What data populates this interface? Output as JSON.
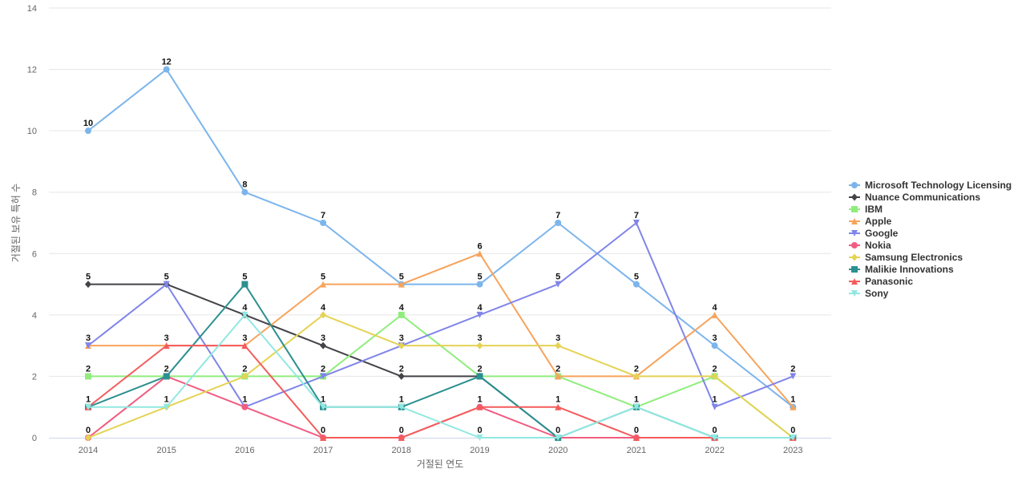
{
  "chart_data": {
    "type": "line",
    "title": "",
    "xlabel": "거절된 연도",
    "ylabel": "거절된 보유 특허 수",
    "ylim": [
      0,
      14
    ],
    "yticks": [
      0,
      2,
      4,
      6,
      8,
      10,
      12,
      14
    ],
    "grid": true,
    "legend_position": "right",
    "data_labels": true,
    "x": [
      "2014",
      "2015",
      "2016",
      "2017",
      "2018",
      "2019",
      "2020",
      "2021",
      "2022",
      "2023"
    ],
    "series": [
      {
        "name": "Microsoft Technology Licensing",
        "color": "#7cb5ec",
        "marker": "circle",
        "values": [
          10,
          12,
          8,
          7,
          5,
          5,
          7,
          5,
          3,
          1
        ]
      },
      {
        "name": "Nuance Communications",
        "color": "#434348",
        "marker": "diamond",
        "values": [
          5,
          5,
          4,
          3,
          2,
          2,
          0,
          0,
          0,
          0
        ]
      },
      {
        "name": "IBM",
        "color": "#90ed7d",
        "marker": "square",
        "values": [
          2,
          2,
          2,
          2,
          4,
          2,
          2,
          1,
          2,
          0
        ]
      },
      {
        "name": "Apple",
        "color": "#f7a35c",
        "marker": "triangle",
        "values": [
          3,
          3,
          3,
          5,
          5,
          6,
          2,
          2,
          4,
          1
        ]
      },
      {
        "name": "Google",
        "color": "#8085e9",
        "marker": "triangle-down",
        "values": [
          3,
          5,
          1,
          2,
          3,
          4,
          5,
          7,
          1,
          2
        ]
      },
      {
        "name": "Nokia",
        "color": "#f15c80",
        "marker": "circle",
        "values": [
          0,
          2,
          1,
          0,
          0,
          1,
          0,
          0,
          0,
          0
        ]
      },
      {
        "name": "Samsung Electronics",
        "color": "#e4d354",
        "marker": "diamond",
        "values": [
          0,
          1,
          2,
          4,
          3,
          3,
          3,
          2,
          2,
          0
        ]
      },
      {
        "name": "Malikie Innovations",
        "color": "#2b908f",
        "marker": "square",
        "values": [
          1,
          2,
          5,
          1,
          1,
          2,
          0,
          1,
          0,
          0
        ]
      },
      {
        "name": "Panasonic",
        "color": "#f45b5b",
        "marker": "triangle",
        "values": [
          1,
          3,
          3,
          0,
          0,
          1,
          1,
          0,
          0,
          0
        ]
      },
      {
        "name": "Sony",
        "color": "#91e8e1",
        "marker": "triangle-down",
        "values": [
          1,
          1,
          4,
          1,
          1,
          0,
          0,
          1,
          0,
          0
        ]
      }
    ],
    "point_labels": [
      {
        "x": "2014",
        "y": 10,
        "text": "10"
      },
      {
        "x": "2014",
        "y": 5,
        "text": "5"
      },
      {
        "x": "2014",
        "y": 3,
        "text": "3"
      },
      {
        "x": "2014",
        "y": 2,
        "text": "2"
      },
      {
        "x": "2014",
        "y": 1,
        "text": "1"
      },
      {
        "x": "2014",
        "y": 0,
        "text": "0"
      },
      {
        "x": "2015",
        "y": 12,
        "text": "12"
      },
      {
        "x": "2015",
        "y": 5,
        "text": "5"
      },
      {
        "x": "2015",
        "y": 3,
        "text": "3"
      },
      {
        "x": "2015",
        "y": 2,
        "text": "2"
      },
      {
        "x": "2015",
        "y": 1,
        "text": "1"
      },
      {
        "x": "2016",
        "y": 8,
        "text": "8"
      },
      {
        "x": "2016",
        "y": 5,
        "text": "5"
      },
      {
        "x": "2016",
        "y": 4,
        "text": "4"
      },
      {
        "x": "2016",
        "y": 3,
        "text": "3"
      },
      {
        "x": "2016",
        "y": 2,
        "text": "2"
      },
      {
        "x": "2016",
        "y": 1,
        "text": "1"
      },
      {
        "x": "2017",
        "y": 7,
        "text": "7"
      },
      {
        "x": "2017",
        "y": 5,
        "text": "5"
      },
      {
        "x": "2017",
        "y": 4,
        "text": "4"
      },
      {
        "x": "2017",
        "y": 3,
        "text": "3"
      },
      {
        "x": "2017",
        "y": 2,
        "text": "2"
      },
      {
        "x": "2017",
        "y": 1,
        "text": "1"
      },
      {
        "x": "2017",
        "y": 0,
        "text": "0"
      },
      {
        "x": "2018",
        "y": 5,
        "text": "5"
      },
      {
        "x": "2018",
        "y": 4,
        "text": "4"
      },
      {
        "x": "2018",
        "y": 3,
        "text": "3"
      },
      {
        "x": "2018",
        "y": 2,
        "text": "2"
      },
      {
        "x": "2018",
        "y": 1,
        "text": "1"
      },
      {
        "x": "2018",
        "y": 0,
        "text": "0"
      },
      {
        "x": "2019",
        "y": 6,
        "text": "6"
      },
      {
        "x": "2019",
        "y": 5,
        "text": "5"
      },
      {
        "x": "2019",
        "y": 4,
        "text": "4"
      },
      {
        "x": "2019",
        "y": 3,
        "text": "3"
      },
      {
        "x": "2019",
        "y": 2,
        "text": "2"
      },
      {
        "x": "2019",
        "y": 1,
        "text": "1"
      },
      {
        "x": "2019",
        "y": 0,
        "text": "0"
      },
      {
        "x": "2020",
        "y": 7,
        "text": "7"
      },
      {
        "x": "2020",
        "y": 5,
        "text": "5"
      },
      {
        "x": "2020",
        "y": 3,
        "text": "3"
      },
      {
        "x": "2020",
        "y": 2,
        "text": "2"
      },
      {
        "x": "2020",
        "y": 1,
        "text": "1"
      },
      {
        "x": "2020",
        "y": 0,
        "text": "0"
      },
      {
        "x": "2021",
        "y": 7,
        "text": "7"
      },
      {
        "x": "2021",
        "y": 5,
        "text": "5"
      },
      {
        "x": "2021",
        "y": 2,
        "text": "2"
      },
      {
        "x": "2021",
        "y": 1,
        "text": "1"
      },
      {
        "x": "2021",
        "y": 0,
        "text": "0"
      },
      {
        "x": "2022",
        "y": 4,
        "text": "4"
      },
      {
        "x": "2022",
        "y": 3,
        "text": "3"
      },
      {
        "x": "2022",
        "y": 2,
        "text": "2"
      },
      {
        "x": "2022",
        "y": 1,
        "text": "1"
      },
      {
        "x": "2022",
        "y": 0,
        "text": "0"
      },
      {
        "x": "2023",
        "y": 2,
        "text": "2"
      },
      {
        "x": "2023",
        "y": 1,
        "text": "1"
      },
      {
        "x": "2023",
        "y": 0,
        "text": "0"
      }
    ]
  }
}
